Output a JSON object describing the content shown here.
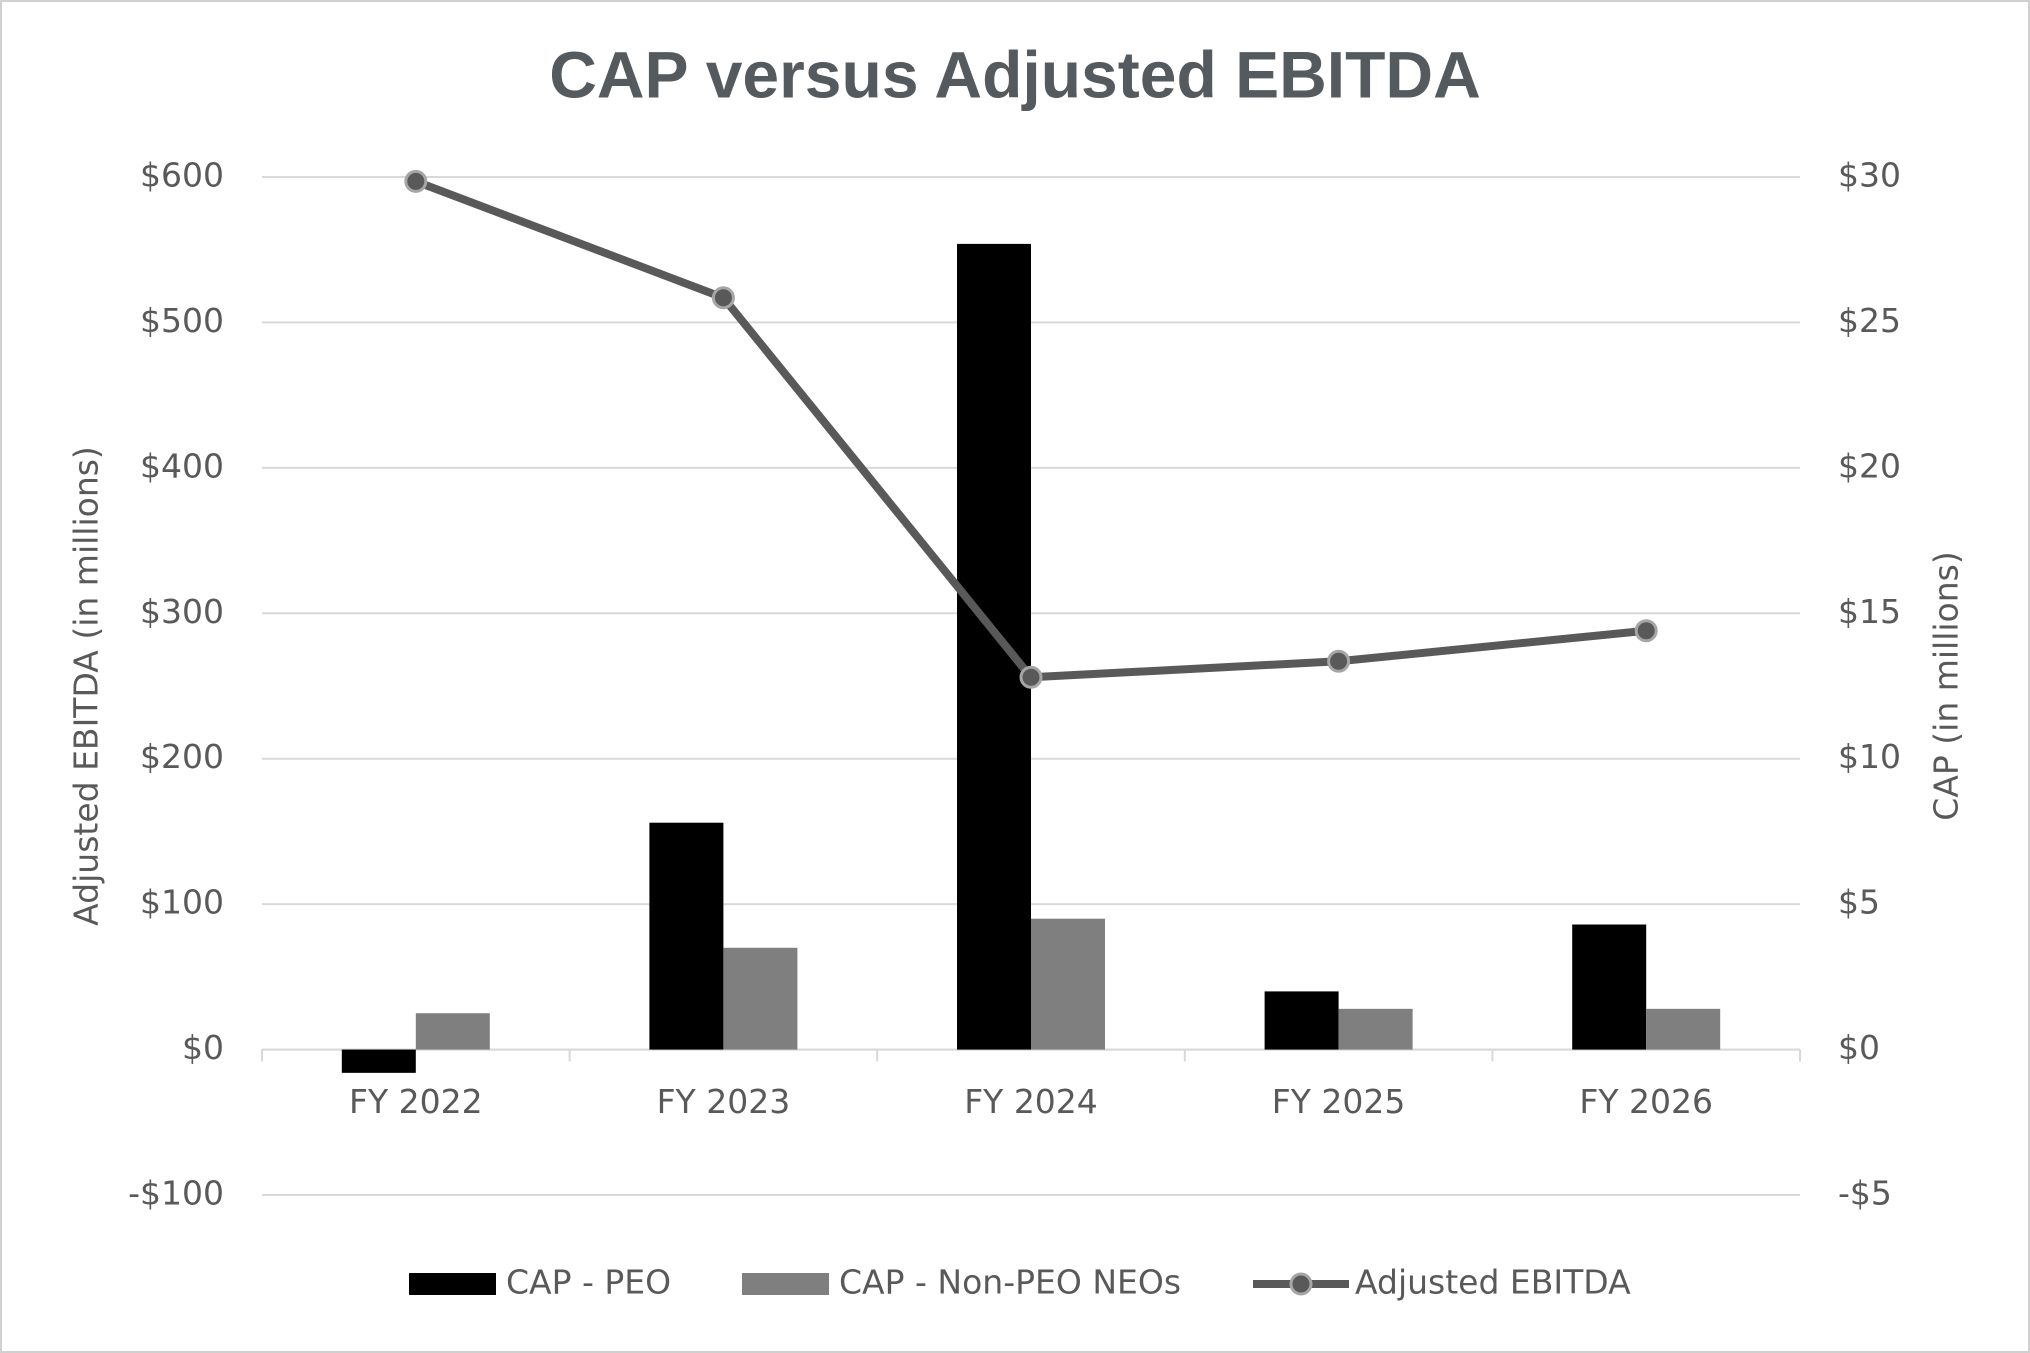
{
  "chart_data": {
    "type": "bar",
    "title": "CAP versus Adjusted EBITDA",
    "y_label": "Adjusted EBITDA (in millions)",
    "y2_label": "CAP (in millions)",
    "categories": [
      "FY 2022",
      "FY 2023",
      "FY 2024",
      "FY 2025",
      "FY 2026"
    ],
    "series": [
      {
        "name": "CAP - PEO",
        "type": "bar",
        "axis": "y2",
        "color": "#000000",
        "values": [
          -0.8,
          7.8,
          27.7,
          2.0,
          4.3
        ]
      },
      {
        "name": "CAP - Non-PEO NEOs",
        "type": "bar",
        "axis": "y2",
        "color": "#7f7f7f",
        "values": [
          1.25,
          3.5,
          4.5,
          1.4,
          1.4
        ]
      },
      {
        "name": "Adjusted EBITDA",
        "type": "line",
        "color": "#595959",
        "values": [
          597,
          517,
          256,
          267,
          288
        ]
      }
    ],
    "ylim": [
      -100,
      600
    ],
    "yticks": [
      {
        "value": -100,
        "label": "-$100"
      },
      {
        "value": 0,
        "label": "$0"
      },
      {
        "value": 100,
        "label": "$100"
      },
      {
        "value": 200,
        "label": "$200"
      },
      {
        "value": 300,
        "label": "$300"
      },
      {
        "value": 400,
        "label": "$400"
      },
      {
        "value": 500,
        "label": "$500"
      },
      {
        "value": 600,
        "label": "$600"
      }
    ],
    "y2lim": [
      -5,
      30
    ],
    "y2ticks": [
      {
        "value": -5,
        "label": "-$5"
      },
      {
        "value": 0,
        "label": "$0"
      },
      {
        "value": 5,
        "label": "$5"
      },
      {
        "value": 10,
        "label": "$10"
      },
      {
        "value": 15,
        "label": "$15"
      },
      {
        "value": 20,
        "label": "$20"
      },
      {
        "value": 25,
        "label": "$25"
      },
      {
        "value": 30,
        "label": "$30"
      }
    ],
    "grid": true,
    "legend": "bottom"
  }
}
